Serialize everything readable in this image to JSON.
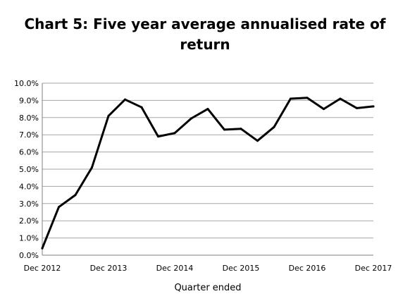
{
  "chart_data": {
    "type": "line",
    "title_line1": "Chart 5: Five year average annualised rate of",
    "title_line2": "return",
    "xlabel": "Quarter ended",
    "ylabel": "",
    "ylim": [
      0,
      10
    ],
    "y_ticks": [
      0,
      1,
      2,
      3,
      4,
      5,
      6,
      7,
      8,
      9,
      10
    ],
    "y_tick_labels": [
      "0.0%",
      "1.0%",
      "2.0%",
      "3.0%",
      "4.0%",
      "5.0%",
      "6.0%",
      "7.0%",
      "8.0%",
      "9.0%",
      "10.0%"
    ],
    "x_tick_labels": [
      "Dec 2012",
      "Dec 2013",
      "Dec 2014",
      "Dec 2015",
      "Dec 2016",
      "Dec 2017"
    ],
    "x_tick_index": [
      0,
      4,
      8,
      12,
      16,
      20
    ],
    "grid": true,
    "line_color": "#000000",
    "grid_color": "#a6a6a6",
    "series": [
      {
        "values": [
          0.4,
          2.8,
          3.5,
          5.1,
          8.1,
          9.05,
          8.6,
          6.9,
          7.1,
          7.95,
          8.5,
          7.3,
          7.35,
          6.65,
          7.45,
          9.1,
          9.15,
          8.5,
          9.1,
          8.55,
          8.65
        ]
      }
    ]
  }
}
